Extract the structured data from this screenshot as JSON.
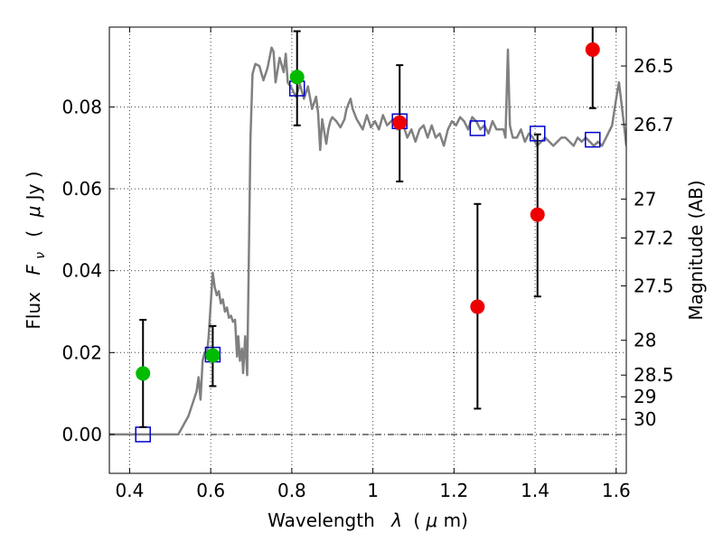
{
  "chart_data": {
    "type": "scatter",
    "xlabel_text": "Wavelength",
    "xlabel_symbol": "λ",
    "xlabel_unit_open": "(",
    "xlabel_unit_mu": "μ",
    "xlabel_unit_rest": "m)",
    "ylabel_text": "Flux",
    "ylabel_symbol": "F",
    "ylabel_sub": "ν",
    "ylabel_unit_open": "(",
    "ylabel_unit_mu": "μ",
    "ylabel_unit_rest": "Jy )",
    "y2label": "Magnitude (AB)",
    "xlim": [
      0.35,
      1.625
    ],
    "ylim": [
      -0.0095,
      0.0995
    ],
    "grid": true,
    "xticks": [
      0.4,
      0.6,
      0.8,
      1.0,
      1.2,
      1.4,
      1.6
    ],
    "xtick_labels": [
      "0.4",
      "0.6",
      "0.8",
      "1",
      "1.2",
      "1.4",
      "1.6"
    ],
    "yticks": [
      0.0,
      0.02,
      0.04,
      0.06,
      0.08
    ],
    "ytick_labels": [
      "0.00",
      "0.02",
      "0.04",
      "0.06",
      "0.08"
    ],
    "y2_ticks": [
      {
        "label": "26.5",
        "flux": 0.09
      },
      {
        "label": "26.7",
        "flux": 0.0757
      },
      {
        "label": "27",
        "flux": 0.0575
      },
      {
        "label": "27.2",
        "flux": 0.048
      },
      {
        "label": "27.5",
        "flux": 0.0363
      },
      {
        "label": "28",
        "flux": 0.023
      },
      {
        "label": "28.5",
        "flux": 0.0145
      },
      {
        "label": "29",
        "flux": 0.0092
      },
      {
        "label": "30",
        "flux": 0.0037
      }
    ],
    "zero_line": 0.0,
    "series": [
      {
        "kind": "line",
        "color": "#808080",
        "points": [
          [
            0.35,
            0.0
          ],
          [
            0.52,
            0.0
          ],
          [
            0.545,
            0.0045
          ],
          [
            0.565,
            0.0105
          ],
          [
            0.57,
            0.014
          ],
          [
            0.575,
            0.0085
          ],
          [
            0.58,
            0.018
          ],
          [
            0.585,
            0.02
          ],
          [
            0.59,
            0.019
          ],
          [
            0.595,
            0.024
          ],
          [
            0.6,
            0.032
          ],
          [
            0.605,
            0.0395
          ],
          [
            0.61,
            0.036
          ],
          [
            0.615,
            0.034
          ],
          [
            0.62,
            0.035
          ],
          [
            0.625,
            0.032
          ],
          [
            0.63,
            0.033
          ],
          [
            0.635,
            0.03
          ],
          [
            0.64,
            0.031
          ],
          [
            0.645,
            0.0285
          ],
          [
            0.65,
            0.029
          ],
          [
            0.655,
            0.0275
          ],
          [
            0.66,
            0.028
          ],
          [
            0.665,
            0.019
          ],
          [
            0.668,
            0.024
          ],
          [
            0.672,
            0.018
          ],
          [
            0.677,
            0.021
          ],
          [
            0.68,
            0.015
          ],
          [
            0.685,
            0.024
          ],
          [
            0.69,
            0.0145
          ],
          [
            0.694,
            0.0425
          ],
          [
            0.698,
            0.072
          ],
          [
            0.703,
            0.088
          ],
          [
            0.71,
            0.0905
          ],
          [
            0.72,
            0.09
          ],
          [
            0.73,
            0.0865
          ],
          [
            0.74,
            0.0895
          ],
          [
            0.75,
            0.0945
          ],
          [
            0.755,
            0.0935
          ],
          [
            0.76,
            0.086
          ],
          [
            0.77,
            0.092
          ],
          [
            0.78,
            0.0885
          ],
          [
            0.785,
            0.093
          ],
          [
            0.79,
            0.086
          ],
          [
            0.8,
            0.0845
          ],
          [
            0.81,
            0.0825
          ],
          [
            0.82,
            0.0855
          ],
          [
            0.83,
            0.082
          ],
          [
            0.84,
            0.085
          ],
          [
            0.85,
            0.0795
          ],
          [
            0.86,
            0.0825
          ],
          [
            0.865,
            0.0785
          ],
          [
            0.87,
            0.0695
          ],
          [
            0.875,
            0.077
          ],
          [
            0.885,
            0.071
          ],
          [
            0.89,
            0.0745
          ],
          [
            0.895,
            0.0765
          ],
          [
            0.9,
            0.0775
          ],
          [
            0.91,
            0.0765
          ],
          [
            0.92,
            0.075
          ],
          [
            0.93,
            0.077
          ],
          [
            0.935,
            0.0795
          ],
          [
            0.945,
            0.082
          ],
          [
            0.95,
            0.0795
          ],
          [
            0.96,
            0.077
          ],
          [
            0.975,
            0.0745
          ],
          [
            0.985,
            0.078
          ],
          [
            0.995,
            0.075
          ],
          [
            1.005,
            0.0765
          ],
          [
            1.015,
            0.0745
          ],
          [
            1.025,
            0.078
          ],
          [
            1.035,
            0.0755
          ],
          [
            1.05,
            0.077
          ],
          [
            1.06,
            0.0745
          ],
          [
            1.075,
            0.0755
          ],
          [
            1.085,
            0.0725
          ],
          [
            1.095,
            0.0745
          ],
          [
            1.105,
            0.0715
          ],
          [
            1.115,
            0.0745
          ],
          [
            1.125,
            0.0755
          ],
          [
            1.135,
            0.0725
          ],
          [
            1.145,
            0.0755
          ],
          [
            1.155,
            0.0725
          ],
          [
            1.165,
            0.0735
          ],
          [
            1.175,
            0.0705
          ],
          [
            1.185,
            0.0745
          ],
          [
            1.195,
            0.0765
          ],
          [
            1.205,
            0.0755
          ],
          [
            1.215,
            0.0775
          ],
          [
            1.225,
            0.0765
          ],
          [
            1.235,
            0.0745
          ],
          [
            1.245,
            0.0775
          ],
          [
            1.255,
            0.0765
          ],
          [
            1.265,
            0.0745
          ],
          [
            1.275,
            0.0755
          ],
          [
            1.285,
            0.0735
          ],
          [
            1.295,
            0.0765
          ],
          [
            1.305,
            0.0745
          ],
          [
            1.315,
            0.0745
          ],
          [
            1.322,
            0.0745
          ],
          [
            1.327,
            0.0725
          ],
          [
            1.333,
            0.094
          ],
          [
            1.338,
            0.0755
          ],
          [
            1.345,
            0.0725
          ],
          [
            1.355,
            0.0725
          ],
          [
            1.365,
            0.0745
          ],
          [
            1.375,
            0.0715
          ],
          [
            1.385,
            0.0735
          ],
          [
            1.395,
            0.0725
          ],
          [
            1.405,
            0.0705
          ],
          [
            1.415,
            0.0715
          ],
          [
            1.425,
            0.0725
          ],
          [
            1.435,
            0.0715
          ],
          [
            1.445,
            0.0705
          ],
          [
            1.455,
            0.0715
          ],
          [
            1.465,
            0.0725
          ],
          [
            1.475,
            0.0725
          ],
          [
            1.485,
            0.0715
          ],
          [
            1.495,
            0.0705
          ],
          [
            1.505,
            0.0725
          ],
          [
            1.515,
            0.0715
          ],
          [
            1.525,
            0.0725
          ],
          [
            1.535,
            0.0715
          ],
          [
            1.545,
            0.0705
          ],
          [
            1.555,
            0.0715
          ],
          [
            1.565,
            0.0705
          ],
          [
            1.575,
            0.0725
          ],
          [
            1.59,
            0.0755
          ],
          [
            1.6,
            0.082
          ],
          [
            1.607,
            0.086
          ],
          [
            1.613,
            0.081
          ],
          [
            1.62,
            0.075
          ],
          [
            1.625,
            0.0705
          ]
        ]
      },
      {
        "kind": "square",
        "color": "#0000cc",
        "points": [
          [
            0.433,
            0.0
          ],
          [
            0.605,
            0.0195
          ],
          [
            0.813,
            0.0845
          ],
          [
            1.066,
            0.0765
          ],
          [
            1.258,
            0.0748
          ],
          [
            1.406,
            0.0735
          ],
          [
            1.542,
            0.072
          ]
        ]
      },
      {
        "kind": "errorbar",
        "color": "#000000",
        "bars": [
          {
            "x": 0.433,
            "lo": 0.0018,
            "hi": 0.028
          },
          {
            "x": 0.605,
            "lo": 0.0118,
            "hi": 0.0265
          },
          {
            "x": 0.813,
            "lo": 0.0755,
            "hi": 0.0985
          },
          {
            "x": 1.066,
            "lo": 0.0618,
            "hi": 0.0902
          },
          {
            "x": 1.258,
            "lo": 0.0063,
            "hi": 0.0563
          },
          {
            "x": 1.406,
            "lo": 0.0337,
            "hi": 0.0733
          },
          {
            "x": 1.542,
            "lo": 0.0797,
            "hi": 0.103
          }
        ]
      },
      {
        "kind": "circle",
        "color": "#00bb00",
        "points": [
          [
            0.433,
            0.0149
          ],
          [
            0.605,
            0.0193
          ],
          [
            0.813,
            0.0873
          ]
        ]
      },
      {
        "kind": "circle",
        "color": "#ee0000",
        "points": [
          [
            1.066,
            0.0762
          ],
          [
            1.258,
            0.0312
          ],
          [
            1.406,
            0.0537
          ],
          [
            1.542,
            0.094
          ]
        ]
      }
    ]
  }
}
